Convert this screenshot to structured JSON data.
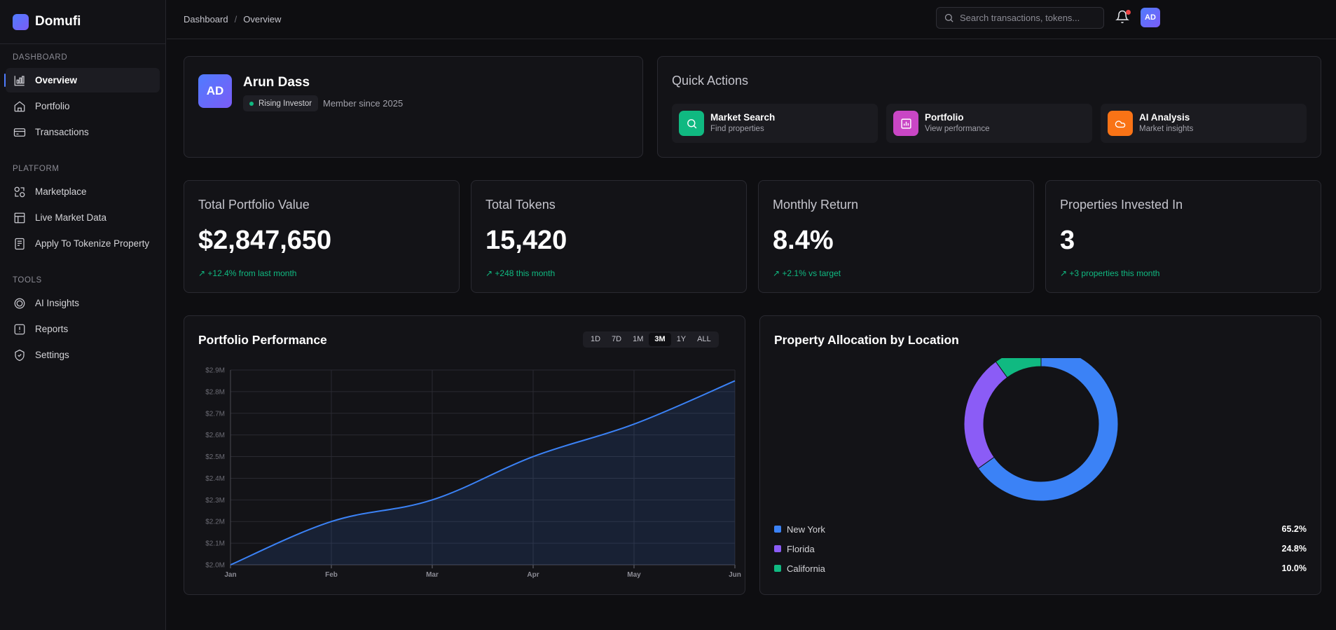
{
  "app": {
    "name": "Domufi"
  },
  "sidebar": {
    "sections": [
      {
        "heading": "DASHBOARD",
        "items": [
          {
            "label": "Overview",
            "icon": "chart-icon",
            "active": true
          },
          {
            "label": "Portfolio",
            "icon": "home-icon"
          },
          {
            "label": "Transactions",
            "icon": "card-icon"
          }
        ]
      },
      {
        "heading": "PLATFORM",
        "items": [
          {
            "label": "Marketplace",
            "icon": "marketplace-icon"
          },
          {
            "label": "Live Market Data",
            "icon": "table-icon"
          },
          {
            "label": "Apply To Tokenize Property",
            "icon": "document-icon"
          }
        ]
      },
      {
        "heading": "TOOLS",
        "items": [
          {
            "label": "AI Insights",
            "icon": "target-icon"
          },
          {
            "label": "Reports",
            "icon": "alert-icon"
          },
          {
            "label": "Settings",
            "icon": "shield-icon"
          }
        ]
      }
    ]
  },
  "header": {
    "breadcrumb": [
      "Dashboard",
      "Overview"
    ],
    "search_placeholder": "Search transactions, tokens...",
    "avatar_initials": "AD"
  },
  "profile": {
    "initials": "AD",
    "name": "Arun Dass",
    "badge": "Rising Investor",
    "member_since": "Member since 2025"
  },
  "quick_actions": {
    "title": "Quick Actions",
    "items": [
      {
        "title": "Market Search",
        "subtitle": "Find properties",
        "icon": "search-icon",
        "color": "#10b981"
      },
      {
        "title": "Portfolio",
        "subtitle": "View performance",
        "icon": "chart-icon",
        "color": "#c946c5"
      },
      {
        "title": "AI Analysis",
        "subtitle": "Market insights",
        "icon": "cloud-icon",
        "color": "#f97316"
      }
    ]
  },
  "stats": [
    {
      "label": "Total Portfolio Value",
      "value": "$2,847,650",
      "change": "↗ +12.4% from last month"
    },
    {
      "label": "Total Tokens",
      "value": "15,420",
      "change": "↗ +248 this month"
    },
    {
      "label": "Monthly Return",
      "value": "8.4%",
      "change": "↗ +2.1% vs target"
    },
    {
      "label": "Properties Invested In",
      "value": "3",
      "change": "↗ +3 properties this month"
    }
  ],
  "performance": {
    "title": "Portfolio Performance",
    "ranges": [
      "1D",
      "7D",
      "1M",
      "3M",
      "1Y",
      "ALL"
    ],
    "active_range": "3M"
  },
  "allocation": {
    "title": "Property Allocation by Location"
  },
  "chart_data": [
    {
      "type": "area",
      "title": "Portfolio Performance",
      "categories": [
        "Jan",
        "Feb",
        "Mar",
        "Apr",
        "May",
        "Jun"
      ],
      "values": [
        2.0,
        2.2,
        2.3,
        2.5,
        2.65,
        2.85
      ],
      "ylim": [
        2.0,
        2.9
      ],
      "yticks": [
        "$2.0M",
        "$2.1M",
        "$2.2M",
        "$2.3M",
        "$2.4M",
        "$2.5M",
        "$2.6M",
        "$2.7M",
        "$2.8M",
        "$2.9M"
      ],
      "color": "#3b82f6"
    },
    {
      "type": "pie",
      "title": "Property Allocation by Location",
      "labels": [
        "New York",
        "Florida",
        "California"
      ],
      "values": [
        65.2,
        24.8,
        10.0
      ],
      "display": [
        "65.2%",
        "24.8%",
        "10.0%"
      ],
      "colors": [
        "#3b82f6",
        "#8b5cf6",
        "#10b981"
      ]
    }
  ]
}
